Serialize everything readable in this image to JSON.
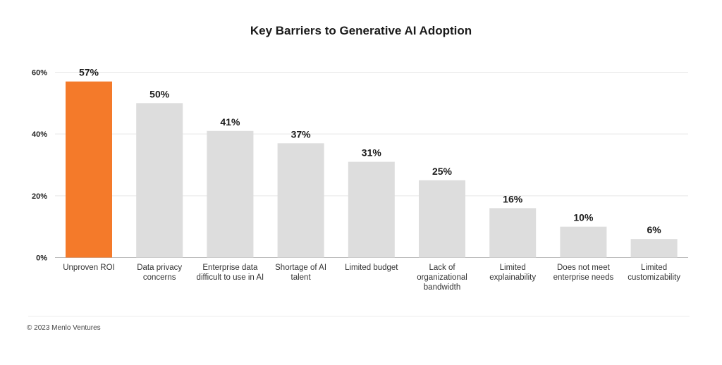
{
  "chart_data": {
    "type": "bar",
    "title": "Key Barriers to Generative AI Adoption",
    "categories": [
      "Unproven ROI",
      "Data privacy concerns",
      "Enterprise data difficult to use in AI",
      "Shortage of AI talent",
      "Limited budget",
      "Lack of organizational bandwidth",
      "Limited explainability",
      "Does not meet enterprise needs",
      "Limited customizability"
    ],
    "category_lines": [
      [
        "Unproven ROI"
      ],
      [
        "Data privacy",
        "concerns"
      ],
      [
        "Enterprise data",
        "difficult to use in AI"
      ],
      [
        "Shortage of AI",
        "talent"
      ],
      [
        "Limited budget"
      ],
      [
        "Lack of",
        "organizational",
        "bandwidth"
      ],
      [
        "Limited",
        "explainability"
      ],
      [
        "Does not meet",
        "enterprise needs"
      ],
      [
        "Limited",
        "customizability"
      ]
    ],
    "values": [
      57,
      50,
      41,
      37,
      31,
      25,
      16,
      10,
      6
    ],
    "value_labels": [
      "57%",
      "50%",
      "41%",
      "37%",
      "31%",
      "25%",
      "16%",
      "10%",
      "6%"
    ],
    "xlabel": "",
    "ylabel": "",
    "ylim": [
      0,
      60
    ],
    "yticks": [
      0,
      20,
      40,
      60
    ],
    "ytick_labels": [
      "0%",
      "20%",
      "40%",
      "60%"
    ],
    "grid": true,
    "legend": "none",
    "colors": {
      "highlight": "#f47a2a",
      "default": "#dddddd",
      "grid": "#e6e6e6",
      "axis": "#bbbbbb"
    },
    "highlight_index": 0
  },
  "footer": {
    "copyright": "© 2023 Menlo Ventures"
  }
}
